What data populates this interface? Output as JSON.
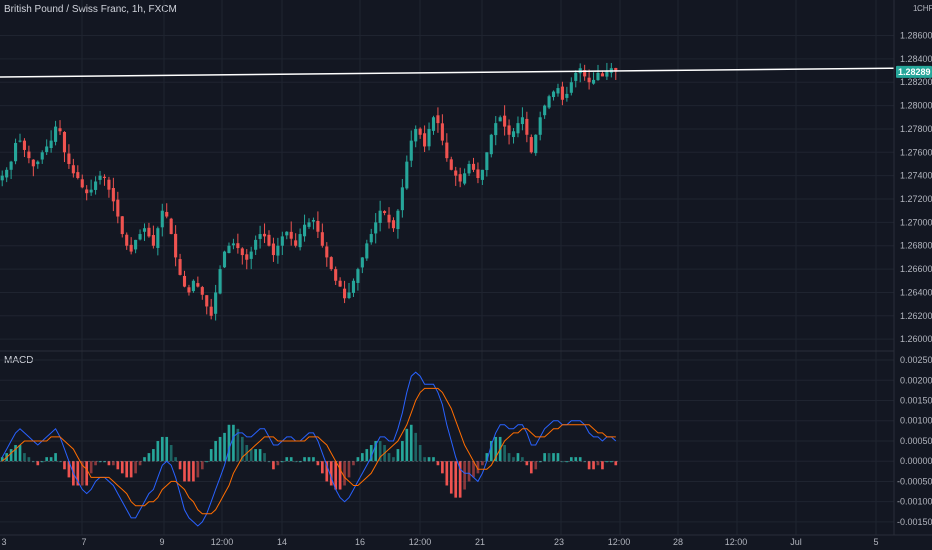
{
  "header": {
    "symbol_title": "British Pound / Swiss Franc, 1h, FXCM",
    "currency": "CHF"
  },
  "macd_pane": {
    "title": "MACD"
  },
  "price_axis": {
    "labels": [
      "1.28600",
      "1.28400",
      "1.28200",
      "1.28000",
      "1.27800",
      "1.27600",
      "1.27400",
      "1.27200",
      "1.27000",
      "1.26800",
      "1.26600",
      "1.26400",
      "1.26200",
      "1.26000"
    ],
    "top_label": "1."
  },
  "macd_axis": {
    "labels": [
      "0.00250",
      "0.00200",
      "0.00150",
      "0.00100",
      "0.00050",
      "0.00000",
      "-0.00050",
      "-0.00100",
      "-0.00150"
    ]
  },
  "time_axis": {
    "labels": [
      "3",
      "7",
      "9",
      "12:00",
      "14",
      "16",
      "12:00",
      "21",
      "23",
      "12:00",
      "28",
      "12:00",
      "Jul",
      "5"
    ]
  },
  "last_price": {
    "value": 1.28289,
    "label": "1.28289",
    "color": "#26a69a"
  },
  "horizontal_line": {
    "price_left": 1.28245,
    "price_right": 1.2832,
    "color": "#ffffff"
  },
  "colors": {
    "background": "#131722",
    "up": "#26a69a",
    "down": "#ef5350",
    "macd_line": "#2962ff",
    "signal_line": "#ff6d00",
    "hist_up": "#26a69a",
    "hist_down": "#ef5350",
    "grid": "#1f2430"
  },
  "chart_data": [
    {
      "type": "candlestick",
      "title": "British Pound / Swiss Franc, 1h, FXCM",
      "ylim": [
        1.2595,
        1.2875
      ],
      "note": "close path approximated from chart",
      "close_series": [
        1.274,
        1.2745,
        1.2752,
        1.2768,
        1.277,
        1.2762,
        1.2755,
        1.2748,
        1.2752,
        1.276,
        1.2765,
        1.277,
        1.2782,
        1.2778,
        1.276,
        1.275,
        1.2742,
        1.2738,
        1.273,
        1.2725,
        1.2728,
        1.2735,
        1.274,
        1.2738,
        1.2728,
        1.2718,
        1.2705,
        1.269,
        1.268,
        1.2675,
        1.2685,
        1.269,
        1.2695,
        1.2688,
        1.268,
        1.2695,
        1.271,
        1.2705,
        1.269,
        1.267,
        1.2655,
        1.2645,
        1.264,
        1.265,
        1.2645,
        1.2638,
        1.2628,
        1.262,
        1.264,
        1.266,
        1.2675,
        1.268,
        1.2682,
        1.2678,
        1.2672,
        1.2668,
        1.2675,
        1.2685,
        1.269,
        1.2688,
        1.268,
        1.2672,
        1.268,
        1.2688,
        1.2692,
        1.2686,
        1.268,
        1.269,
        1.2698,
        1.27,
        1.2702,
        1.2692,
        1.268,
        1.267,
        1.266,
        1.265,
        1.2645,
        1.2635,
        1.264,
        1.265,
        1.266,
        1.267,
        1.2682,
        1.269,
        1.27,
        1.271,
        1.2708,
        1.27,
        1.2695,
        1.271,
        1.273,
        1.2752,
        1.277,
        1.278,
        1.2775,
        1.2765,
        1.278,
        1.279,
        1.2785,
        1.277,
        1.2755,
        1.2745,
        1.274,
        1.2735,
        1.2742,
        1.275,
        1.2745,
        1.2738,
        1.2745,
        1.276,
        1.2775,
        1.2785,
        1.279,
        1.2782,
        1.2775,
        1.2778,
        1.2785,
        1.279,
        1.2775,
        1.276,
        1.2775,
        1.279,
        1.28,
        1.2808,
        1.2812,
        1.2815,
        1.2805,
        1.281,
        1.282,
        1.2828,
        1.2832,
        1.2825,
        1.282,
        1.2822,
        1.2828,
        1.2825,
        1.283,
        1.2832,
        1.2829
      ]
    },
    {
      "type": "line",
      "title": "MACD",
      "ylim": [
        -0.0017,
        0.0026
      ],
      "series": [
        {
          "name": "",
          "role": "macd",
          "values": [
            0.0001,
            0.0003,
            0.0005,
            0.0007,
            0.0008,
            0.0007,
            0.0006,
            0.0005,
            0.0004,
            0.0005,
            0.0006,
            0.0007,
            0.0008,
            0.0006,
            0.0003,
            0.0,
            -0.0003,
            -0.0005,
            -0.0007,
            -0.0008,
            -0.0007,
            -0.0005,
            -0.0004,
            -0.0004,
            -0.0005,
            -0.0006,
            -0.0008,
            -0.001,
            -0.0012,
            -0.0014,
            -0.0014,
            -0.0012,
            -0.001,
            -0.0008,
            -0.0007,
            -0.0004,
            -0.0001,
            0.0,
            -0.0001,
            -0.0004,
            -0.0008,
            -0.0012,
            -0.0014,
            -0.0015,
            -0.0016,
            -0.0015,
            -0.0013,
            -0.001,
            -0.0007,
            -0.0004,
            -0.0001,
            0.0003,
            0.0006,
            0.0007,
            0.0007,
            0.0006,
            0.0006,
            0.0007,
            0.0008,
            0.0008,
            0.0006,
            0.0004,
            0.0004,
            0.0005,
            0.0006,
            0.0006,
            0.0005,
            0.0005,
            0.0006,
            0.0007,
            0.0007,
            0.0005,
            0.0002,
            -0.0001,
            -0.0004,
            -0.0007,
            -0.0009,
            -0.001,
            -0.0009,
            -0.0007,
            -0.0005,
            -0.0003,
            -0.0001,
            0.0001,
            0.0004,
            0.0006,
            0.0006,
            0.0005,
            0.0005,
            0.0008,
            0.0012,
            0.0017,
            0.0021,
            0.0022,
            0.0021,
            0.0019,
            0.0019,
            0.0019,
            0.0017,
            0.0014,
            0.0009,
            0.0005,
            0.0001,
            -0.0002,
            -0.0003,
            -0.0003,
            -0.0004,
            -0.0005,
            -0.0003,
            0.0,
            0.0004,
            0.0007,
            0.0009,
            0.0009,
            0.0008,
            0.0008,
            0.0009,
            0.0009,
            0.0007,
            0.0004,
            0.0004,
            0.0006,
            0.0008,
            0.0009,
            0.001,
            0.001,
            0.0009,
            0.0009,
            0.001,
            0.001,
            0.001,
            0.0009,
            0.0007,
            0.0006,
            0.0006,
            0.0005,
            0.0006,
            0.0006,
            0.0005
          ]
        },
        {
          "name": "",
          "role": "signal",
          "values": [
            0.0,
            0.0001,
            0.0002,
            0.0003,
            0.0004,
            0.0005,
            0.0005,
            0.0005,
            0.0005,
            0.0005,
            0.0005,
            0.0006,
            0.0006,
            0.0006,
            0.0005,
            0.0004,
            0.0003,
            0.0001,
            -0.0001,
            -0.0002,
            -0.0004,
            -0.0004,
            -0.0004,
            -0.0004,
            -0.0004,
            -0.0005,
            -0.0006,
            -0.0007,
            -0.0008,
            -0.001,
            -0.0011,
            -0.0011,
            -0.0011,
            -0.001,
            -0.001,
            -0.0009,
            -0.0007,
            -0.0006,
            -0.0005,
            -0.0005,
            -0.0006,
            -0.0007,
            -0.0009,
            -0.001,
            -0.0012,
            -0.0013,
            -0.0013,
            -0.0013,
            -0.0012,
            -0.001,
            -0.0008,
            -0.0006,
            -0.0003,
            -0.0001,
            0.0001,
            0.0002,
            0.0003,
            0.0004,
            0.0005,
            0.0006,
            0.0006,
            0.0006,
            0.0005,
            0.0005,
            0.0005,
            0.0005,
            0.0005,
            0.0005,
            0.0005,
            0.0006,
            0.0006,
            0.0006,
            0.0005,
            0.0004,
            0.0002,
            0.0,
            -0.0002,
            -0.0004,
            -0.0005,
            -0.0006,
            -0.0006,
            -0.0005,
            -0.0004,
            -0.0003,
            -0.0001,
            0.0001,
            0.0002,
            0.0003,
            0.0004,
            0.0005,
            0.0007,
            0.0009,
            0.0012,
            0.0015,
            0.0017,
            0.0018,
            0.0018,
            0.0018,
            0.0018,
            0.0017,
            0.0015,
            0.0013,
            0.001,
            0.0007,
            0.0004,
            0.0002,
            0.0,
            -0.0002,
            -0.0002,
            -0.0002,
            -0.0001,
            0.0001,
            0.0003,
            0.0005,
            0.0006,
            0.0007,
            0.0007,
            0.0008,
            0.0008,
            0.0007,
            0.0006,
            0.0006,
            0.0006,
            0.0007,
            0.0008,
            0.0008,
            0.0009,
            0.0009,
            0.0009,
            0.0009,
            0.0009,
            0.0009,
            0.0009,
            0.0008,
            0.0007,
            0.0007,
            0.0006,
            0.0006,
            0.0006
          ]
        }
      ]
    }
  ]
}
